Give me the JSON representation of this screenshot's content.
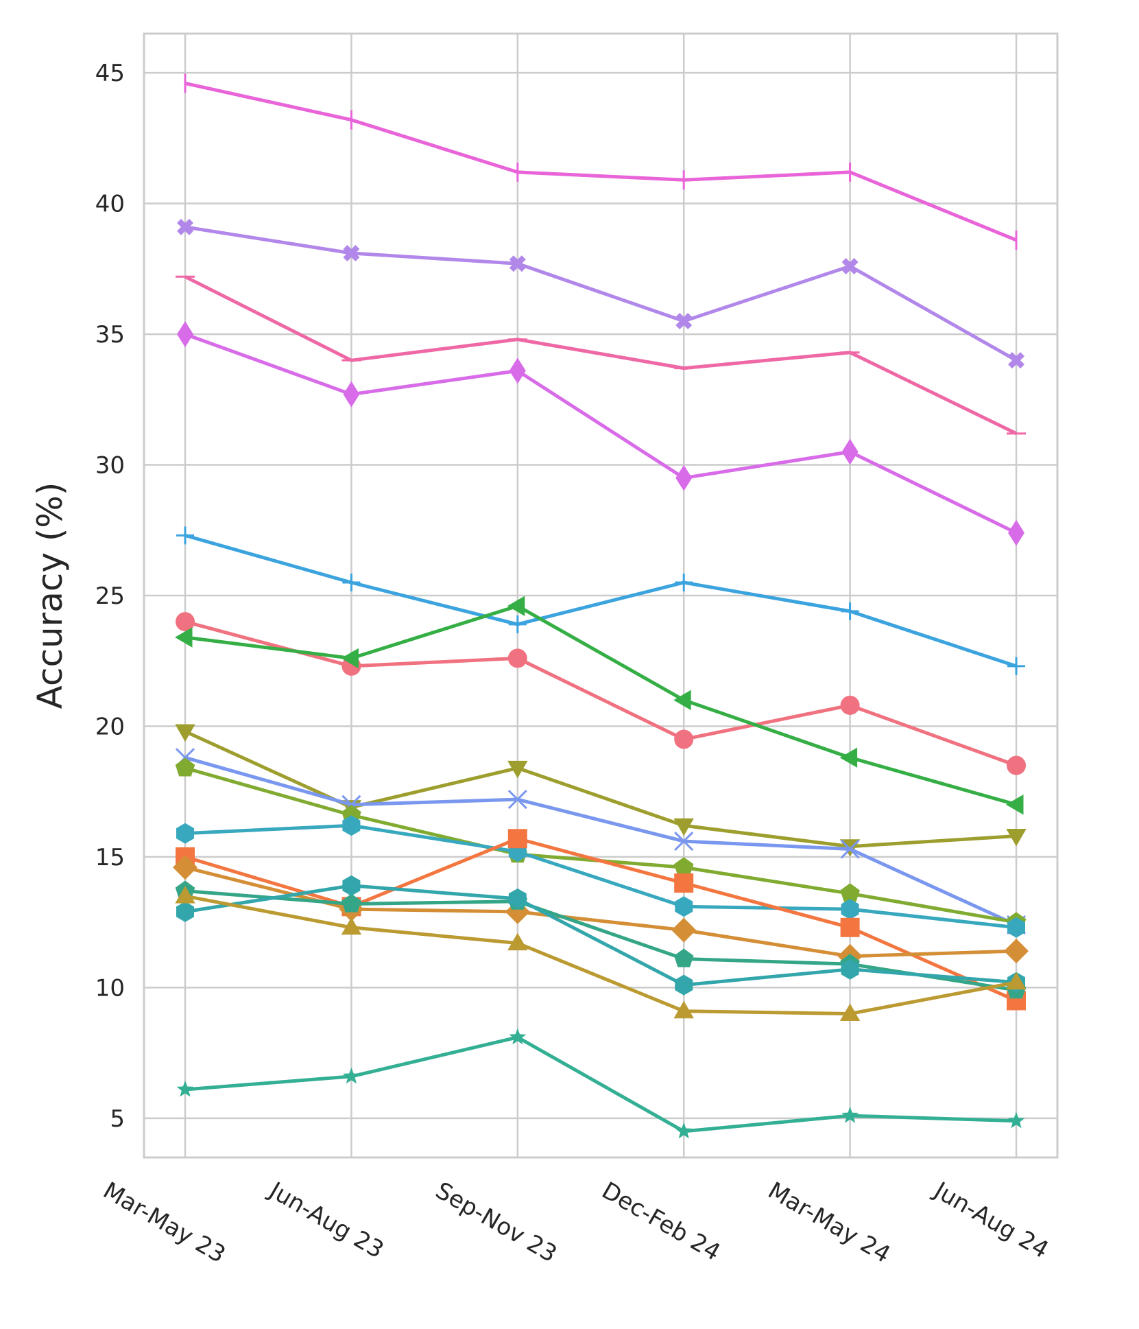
{
  "chart_data": {
    "type": "line",
    "title": "",
    "xlabel": "",
    "ylabel": "Accuracy (%)",
    "categories": [
      "Mar-May 23",
      "Jun-Aug 23",
      "Sep-Nov 23",
      "Dec-Feb 24",
      "Mar-May 24",
      "Jun-Aug 24"
    ],
    "ylim": [
      3.5,
      46.5
    ],
    "yticks": [
      5,
      10,
      15,
      20,
      25,
      30,
      35,
      40,
      45
    ],
    "grid": true,
    "legend": "none",
    "series": [
      {
        "name": "series-1",
        "color": "#e864d8",
        "marker": "vline",
        "values": [
          44.6,
          43.2,
          41.2,
          40.9,
          41.2,
          38.6
        ]
      },
      {
        "name": "series-2",
        "color": "#b287ea",
        "marker": "X",
        "values": [
          39.1,
          38.1,
          37.7,
          35.5,
          37.6,
          34.0
        ]
      },
      {
        "name": "series-3",
        "color": "#ef68a6",
        "marker": "hline",
        "values": [
          37.2,
          34.0,
          34.8,
          33.7,
          34.3,
          31.2
        ]
      },
      {
        "name": "series-4",
        "color": "#d86ce8",
        "marker": "thin-diamond",
        "values": [
          35.0,
          32.7,
          33.6,
          29.5,
          30.5,
          27.4
        ]
      },
      {
        "name": "series-5",
        "color": "#3ba3de",
        "marker": "plus",
        "values": [
          27.3,
          25.5,
          23.9,
          25.5,
          24.4,
          22.3
        ]
      },
      {
        "name": "series-6",
        "color": "#f0717f",
        "marker": "circle",
        "values": [
          24.0,
          22.3,
          22.6,
          19.5,
          20.8,
          18.5
        ]
      },
      {
        "name": "series-7",
        "color": "#34ae45",
        "marker": "triangle-left",
        "values": [
          23.4,
          22.6,
          24.6,
          21.0,
          18.8,
          17.0
        ]
      },
      {
        "name": "series-8",
        "color": "#9d9e2e",
        "marker": "triangle-down",
        "values": [
          19.8,
          16.9,
          18.4,
          16.2,
          15.4,
          15.8
        ]
      },
      {
        "name": "series-9",
        "color": "#7a97ef",
        "marker": "x",
        "values": [
          18.8,
          17.0,
          17.2,
          15.6,
          15.3,
          12.4
        ]
      },
      {
        "name": "series-10",
        "color": "#80ab30",
        "marker": "pentagon",
        "values": [
          18.4,
          16.6,
          15.1,
          14.6,
          13.6,
          12.5
        ]
      },
      {
        "name": "series-11",
        "color": "#38a8be",
        "marker": "hexagon",
        "values": [
          15.9,
          16.2,
          15.2,
          13.1,
          13.0,
          12.3
        ]
      },
      {
        "name": "series-12",
        "color": "#f37640",
        "marker": "square",
        "values": [
          15.0,
          13.1,
          15.7,
          14.0,
          12.3,
          9.5
        ]
      },
      {
        "name": "series-13",
        "color": "#d48e36",
        "marker": "diamond",
        "values": [
          14.6,
          13.0,
          12.9,
          12.2,
          11.2,
          11.4
        ]
      },
      {
        "name": "series-14",
        "color": "#34a687",
        "marker": "pentagon",
        "values": [
          13.7,
          13.2,
          13.3,
          11.1,
          10.9,
          9.9
        ]
      },
      {
        "name": "series-15",
        "color": "#32a6ab",
        "marker": "hexagon",
        "values": [
          12.9,
          13.9,
          13.4,
          10.1,
          10.7,
          10.2
        ]
      },
      {
        "name": "series-16",
        "color": "#ba9a31",
        "marker": "triangle-up",
        "values": [
          13.5,
          12.3,
          11.7,
          9.1,
          9.0,
          10.2
        ]
      },
      {
        "name": "series-17",
        "color": "#33af94",
        "marker": "star",
        "values": [
          6.1,
          6.6,
          8.1,
          4.5,
          5.1,
          4.9
        ]
      }
    ]
  }
}
